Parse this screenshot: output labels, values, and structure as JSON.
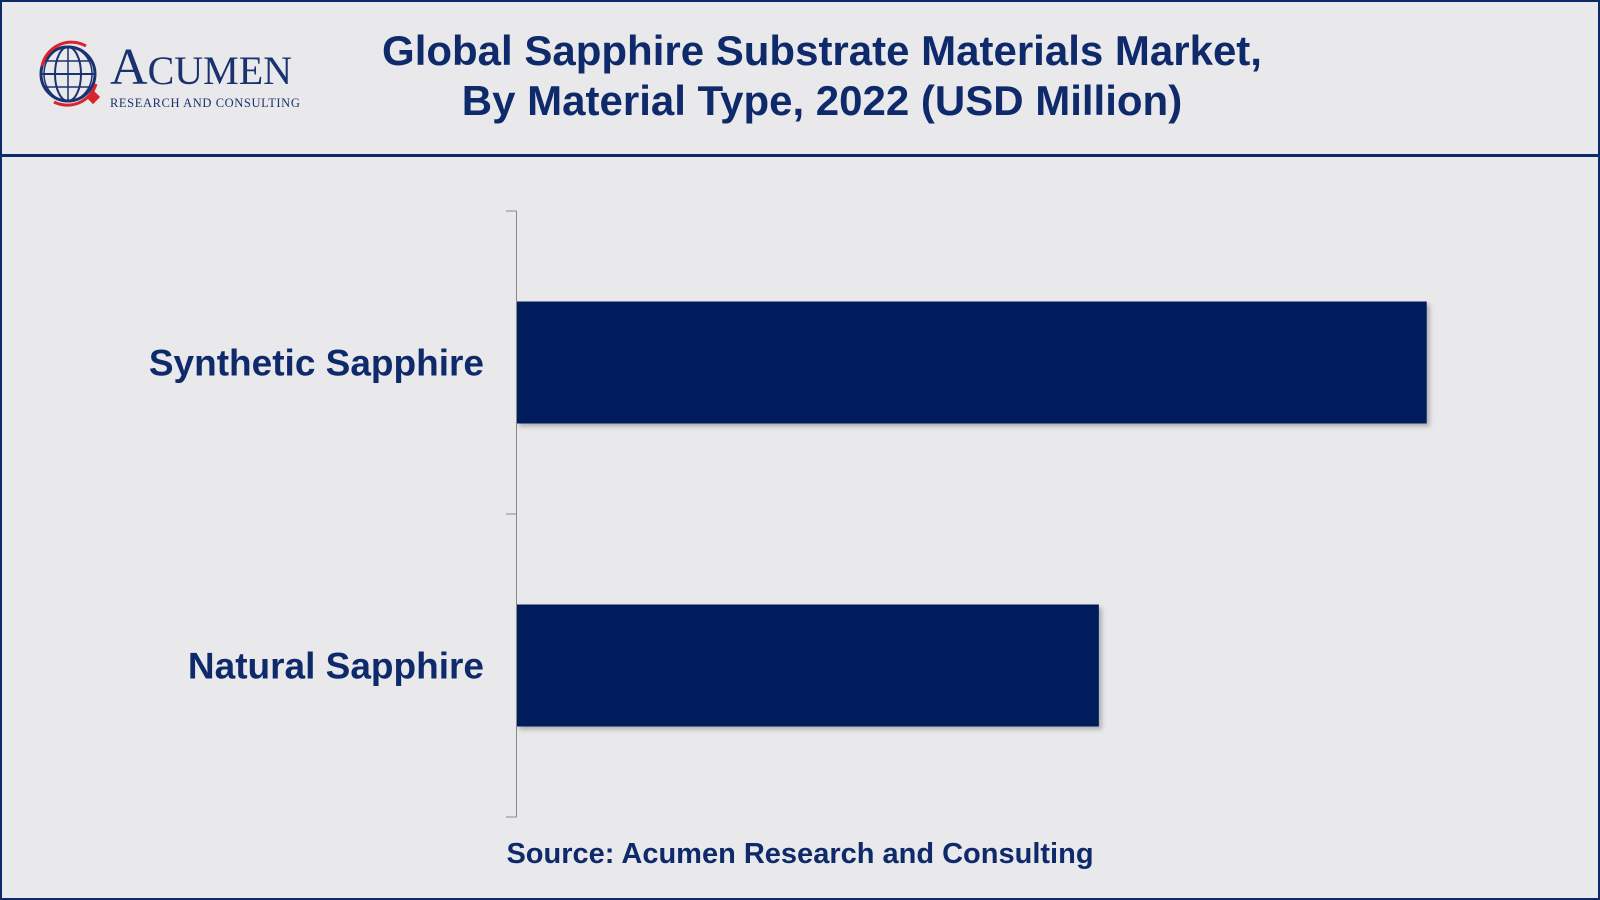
{
  "header": {
    "logo_word_big": "A",
    "logo_word_rest": "CUMEN",
    "logo_sub": "RESEARCH AND CONSULTING",
    "title_line1": "Global Sapphire Substrate Materials Market,",
    "title_line2": "By Material Type, 2022 (USD Million)"
  },
  "colors": {
    "bar": "#001f5b",
    "text": "#0f2a6b",
    "background": "#e9e9eb",
    "logo_red": "#d9232d"
  },
  "chart_data": {
    "type": "bar",
    "orientation": "horizontal",
    "title": "Global Sapphire Substrate Materials Market, By Material Type, 2022 (USD Million)",
    "categories": [
      "Synthetic Sapphire",
      "Natural Sapphire"
    ],
    "values": [
      100,
      64
    ],
    "xlim": [
      0,
      112
    ],
    "grid": false,
    "legend": "none"
  },
  "footer": {
    "source": "Source: Acumen Research and Consulting"
  }
}
